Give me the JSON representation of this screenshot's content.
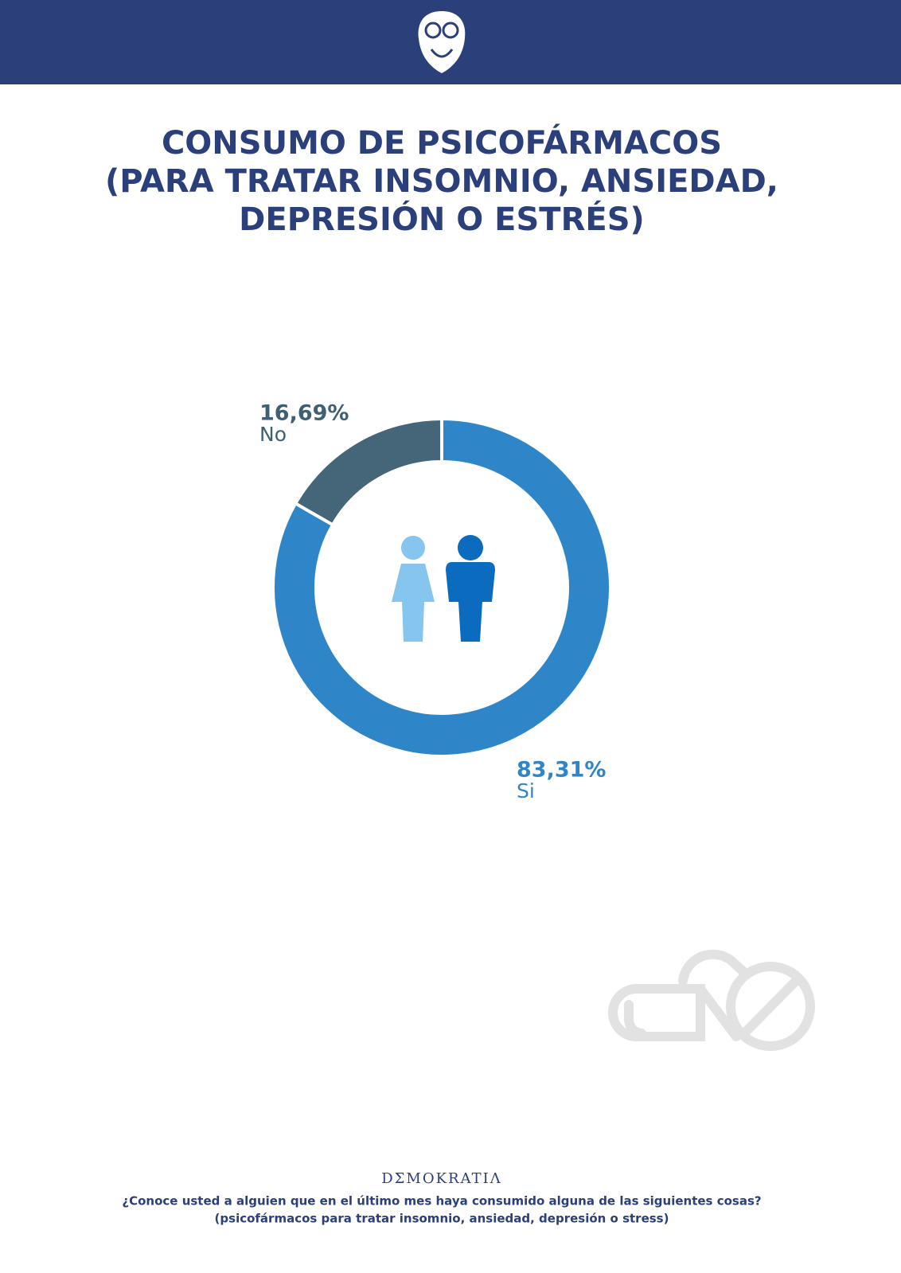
{
  "chart_data": {
    "type": "donut",
    "title": [
      "CONSUMO DE PSICOFÁRMACOS",
      "(PARA TRATAR INSOMNIO, ANSIEDAD,",
      "DEPRESIÓN O ESTRÉS)"
    ],
    "categories": [
      "Si",
      "No"
    ],
    "values": [
      83.31,
      16.69
    ],
    "value_labels": [
      "83,31%",
      "16,69%"
    ],
    "colors": [
      "#2e86c8",
      "#456579"
    ],
    "label_colors": [
      "#2e86c8",
      "#3f5f73"
    ]
  },
  "brand": "DΣMOKRATIΛ",
  "footnote": [
    "¿Conoce usted a alguien que en el último mes haya consumido alguna de las siguientes cosas?",
    "(psicofármacos para tratar insomnio, ansiedad, depresión o stress)"
  ]
}
